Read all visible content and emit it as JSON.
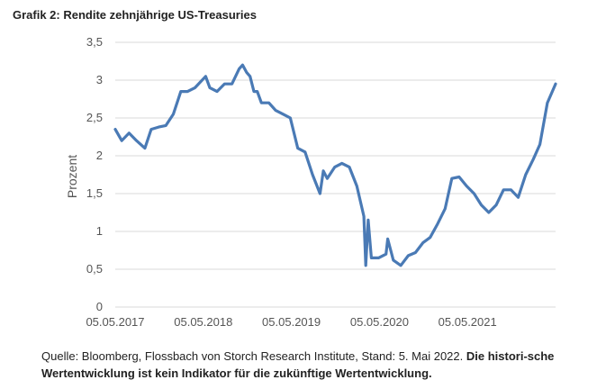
{
  "header": {
    "title": "Grafik 2: Rendite zehnjährige US-Treasuries"
  },
  "footer": {
    "source": "Quelle: Bloomberg, Flossbach von Storch Research Institute, Stand: 5. Mai 2022.",
    "disclaimer": "Die histori-sche Wertentwicklung ist kein Indikator für die zukünftige Wertentwicklung."
  },
  "chart_data": {
    "type": "line",
    "title": "Grafik 2: Rendite zehnjährige US-Treasuries",
    "xlabel": "",
    "ylabel": "Prozent",
    "ylim": [
      0,
      3.5
    ],
    "yticks": [
      "0",
      "0,5",
      "1",
      "1,5",
      "2",
      "2,5",
      "3",
      "3,5"
    ],
    "xticks": [
      "05.05.2017",
      "05.05.2018",
      "05.05.2019",
      "05.05.2020",
      "05.05.2021"
    ],
    "xlim": [
      "2017-05-05",
      "2022-05-05"
    ],
    "grid": true,
    "line_color": "#4a7ab5",
    "series": [
      {
        "name": "",
        "x": [
          "2017-05-05",
          "2017-06-01",
          "2017-07-01",
          "2017-08-01",
          "2017-09-05",
          "2017-10-01",
          "2017-11-01",
          "2017-12-01",
          "2018-01-01",
          "2018-02-01",
          "2018-03-01",
          "2018-04-01",
          "2018-05-15",
          "2018-06-01",
          "2018-07-01",
          "2018-08-01",
          "2018-09-01",
          "2018-10-01",
          "2018-10-15",
          "2018-11-01",
          "2018-11-15",
          "2018-12-01",
          "2018-12-15",
          "2019-01-01",
          "2019-02-01",
          "2019-03-01",
          "2019-04-01",
          "2019-05-01",
          "2019-06-01",
          "2019-07-01",
          "2019-08-01",
          "2019-09-01",
          "2019-09-15",
          "2019-10-01",
          "2019-11-01",
          "2019-12-01",
          "2020-01-01",
          "2020-02-01",
          "2020-03-01",
          "2020-03-09",
          "2020-03-19",
          "2020-04-01",
          "2020-05-01",
          "2020-06-01",
          "2020-06-08",
          "2020-07-01",
          "2020-08-01",
          "2020-09-01",
          "2020-10-01",
          "2020-11-01",
          "2020-12-01",
          "2021-01-01",
          "2021-02-01",
          "2021-03-01",
          "2021-03-31",
          "2021-05-01",
          "2021-06-01",
          "2021-07-01",
          "2021-08-01",
          "2021-09-01",
          "2021-10-01",
          "2021-11-01",
          "2021-12-01",
          "2022-01-01",
          "2022-02-01",
          "2022-03-01",
          "2022-04-01",
          "2022-05-05"
        ],
        "values": [
          2.35,
          2.2,
          2.3,
          2.2,
          2.1,
          2.35,
          2.38,
          2.4,
          2.55,
          2.85,
          2.85,
          2.9,
          3.05,
          2.9,
          2.85,
          2.95,
          2.95,
          3.15,
          3.2,
          3.1,
          3.05,
          2.85,
          2.85,
          2.7,
          2.7,
          2.6,
          2.55,
          2.5,
          2.1,
          2.05,
          1.75,
          1.5,
          1.8,
          1.7,
          1.85,
          1.9,
          1.85,
          1.6,
          1.2,
          0.55,
          1.15,
          0.65,
          0.65,
          0.7,
          0.9,
          0.62,
          0.55,
          0.68,
          0.72,
          0.85,
          0.92,
          1.1,
          1.3,
          1.7,
          1.72,
          1.6,
          1.5,
          1.35,
          1.25,
          1.35,
          1.55,
          1.55,
          1.45,
          1.75,
          1.95,
          2.15,
          2.7,
          2.95
        ]
      }
    ]
  }
}
